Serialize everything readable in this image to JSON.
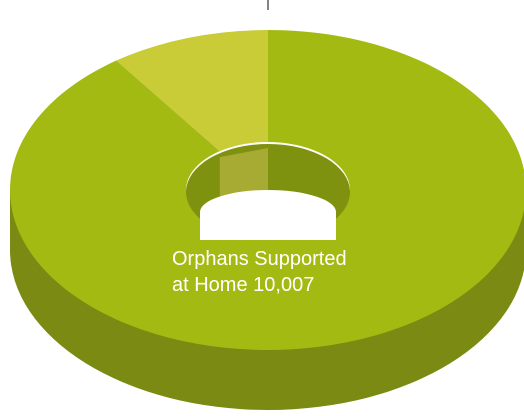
{
  "chart_data": {
    "type": "pie",
    "style": "3d-donut",
    "slices": [
      {
        "label_line1": "Orphans Supported",
        "label_line2": "at Home 10,007",
        "value": 10007,
        "share": 0.9,
        "color": "#a3ba13"
      },
      {
        "value": null,
        "share": 0.1,
        "color": "#c9cb37"
      }
    ],
    "colors": {
      "main_top": "#a3ba13",
      "main_side": "#7a8a12",
      "small_top": "#c9cb37",
      "small_side": "#a7ab34",
      "hole_inner": "#7f9210",
      "leader_line": "#333333"
    }
  }
}
